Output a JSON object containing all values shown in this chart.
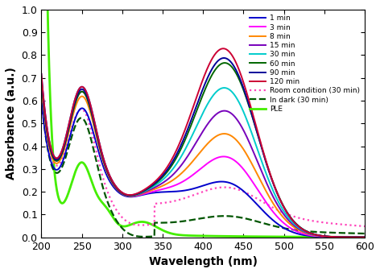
{
  "title": "",
  "xlabel": "Wavelength (nm)",
  "ylabel": "Absorbance (a.u.)",
  "xlim": [
    200,
    600
  ],
  "ylim": [
    0.0,
    1.0
  ],
  "xticks": [
    200,
    250,
    300,
    350,
    400,
    450,
    500,
    550,
    600
  ],
  "yticks": [
    0.0,
    0.1,
    0.2,
    0.3,
    0.4,
    0.5,
    0.6,
    0.7,
    0.8,
    0.9,
    1.0
  ],
  "series": {
    "1min": {
      "color": "#0000cc",
      "lw": 1.4,
      "ls": "-",
      "label": "1 min"
    },
    "3min": {
      "color": "#ff00ff",
      "lw": 1.4,
      "ls": "-",
      "label": "3 min"
    },
    "8min": {
      "color": "#ff8800",
      "lw": 1.4,
      "ls": "-",
      "label": "8 min"
    },
    "15min": {
      "color": "#7700bb",
      "lw": 1.4,
      "ls": "-",
      "label": "15 min"
    },
    "30min": {
      "color": "#00cccc",
      "lw": 1.4,
      "ls": "-",
      "label": "30 min"
    },
    "60min": {
      "color": "#006600",
      "lw": 1.4,
      "ls": "-",
      "label": "60 min"
    },
    "90min": {
      "color": "#000099",
      "lw": 1.4,
      "ls": "-",
      "label": "90 min"
    },
    "120min": {
      "color": "#cc0033",
      "lw": 1.4,
      "ls": "-",
      "label": "120 min"
    },
    "room": {
      "color": "#ff44bb",
      "lw": 1.6,
      "ls": ":",
      "label": "Room condition (30 min)"
    },
    "dark": {
      "color": "#005500",
      "lw": 1.6,
      "ls": "--",
      "label": "In dark (30 min)"
    },
    "PLE": {
      "color": "#44ee00",
      "lw": 2.0,
      "ls": "-",
      "label": "PLE"
    }
  },
  "figsize": [
    4.72,
    3.39
  ],
  "dpi": 100
}
